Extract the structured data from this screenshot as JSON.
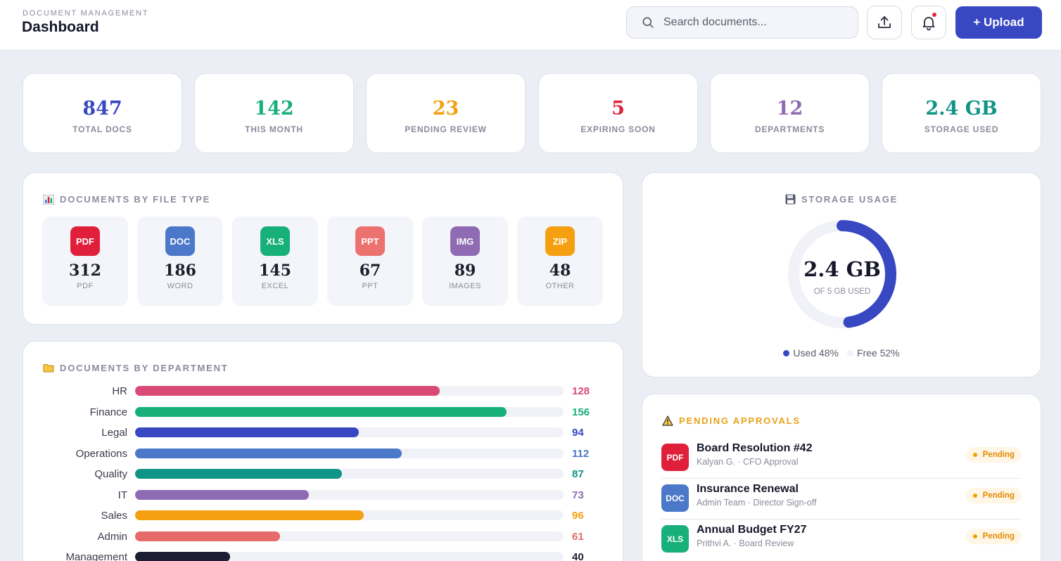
{
  "header": {
    "subtitle": "DOCUMENT MANAGEMENT",
    "title": "Dashboard",
    "search_placeholder": "Search documents...",
    "upload_label": "+ Upload",
    "icons": [
      "search-icon",
      "share-upload-icon",
      "bell-icon"
    ]
  },
  "stats": [
    {
      "value": "847",
      "label": "TOTAL DOCS",
      "color": "#3847c2"
    },
    {
      "value": "142",
      "label": "THIS MONTH",
      "color": "#17b07a"
    },
    {
      "value": "23",
      "label": "PENDING REVIEW",
      "color": "#f4a010"
    },
    {
      "value": "5",
      "label": "EXPIRING SOON",
      "color": "#e0203a"
    },
    {
      "value": "12",
      "label": "DEPARTMENTS",
      "color": "#8e6bb3"
    },
    {
      "value": "2.4 GB",
      "label": "STORAGE USED",
      "color": "#0f9486"
    }
  ],
  "file_types": {
    "title": "DOCUMENTS BY FILE TYPE",
    "icon": "bar-chart-icon",
    "items": [
      {
        "badge": "PDF",
        "count": "312",
        "label": "PDF",
        "color": "#e0203a"
      },
      {
        "badge": "DOC",
        "count": "186",
        "label": "WORD",
        "color": "#4b78c8"
      },
      {
        "badge": "XLS",
        "count": "145",
        "label": "EXCEL",
        "color": "#17b07a"
      },
      {
        "badge": "PPT",
        "count": "67",
        "label": "PPT",
        "color": "#ec7270"
      },
      {
        "badge": "IMG",
        "count": "89",
        "label": "IMAGES",
        "color": "#8e6bb3"
      },
      {
        "badge": "ZIP",
        "count": "48",
        "label": "OTHER",
        "color": "#f4a010"
      }
    ]
  },
  "departments": {
    "title": "DOCUMENTS BY DEPARTMENT",
    "icon": "folder-icon",
    "scale_max": 180,
    "items": [
      {
        "name": "HR",
        "count": "128",
        "value": 128,
        "color": "#d94a77"
      },
      {
        "name": "Finance",
        "count": "156",
        "value": 156,
        "color": "#17b07a"
      },
      {
        "name": "Legal",
        "count": "94",
        "value": 94,
        "color": "#3847c2"
      },
      {
        "name": "Operations",
        "count": "112",
        "value": 112,
        "color": "#4b78c8"
      },
      {
        "name": "Quality",
        "count": "87",
        "value": 87,
        "color": "#0f9486"
      },
      {
        "name": "IT",
        "count": "73",
        "value": 73,
        "color": "#8e6bb3"
      },
      {
        "name": "Sales",
        "count": "96",
        "value": 96,
        "color": "#f4a010"
      },
      {
        "name": "Admin",
        "count": "61",
        "value": 61,
        "color": "#e66a6a"
      },
      {
        "name": "Management",
        "count": "40",
        "value": 40,
        "color": "#1d1d33"
      }
    ]
  },
  "storage": {
    "title": "STORAGE USAGE",
    "icon": "floppy-disk-icon",
    "value": "2.4 GB",
    "caption": "OF 5 GB USED",
    "used_fraction": 0.48,
    "used_color": "#3847c2",
    "free_color": "#f1f2f8",
    "legend_used": "Used 48%",
    "legend_free": "Free 52%"
  },
  "approvals": {
    "title": "PENDING APPROVALS",
    "icon": "warning-icon",
    "items": [
      {
        "badge": "PDF",
        "color": "#e0203a",
        "title": "Board Resolution #42",
        "subtitle": "Kalyan G. · CFO Approval",
        "status": "Pending"
      },
      {
        "badge": "DOC",
        "color": "#4b78c8",
        "title": "Insurance Renewal",
        "subtitle": "Admin Team · Director Sign-off",
        "status": "Pending"
      },
      {
        "badge": "XLS",
        "color": "#17b07a",
        "title": "Annual Budget FY27",
        "subtitle": "Prithvi A. · Board Review",
        "status": "Pending"
      }
    ]
  }
}
